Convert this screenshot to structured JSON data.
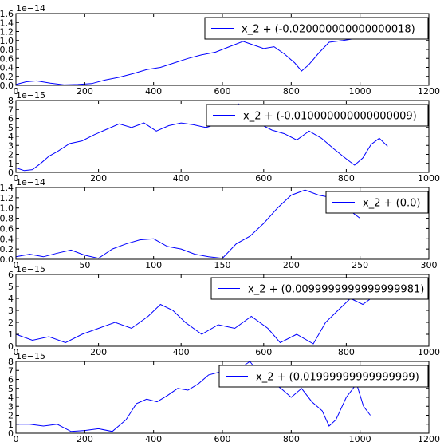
{
  "chart_data": [
    {
      "type": "line",
      "xlim": [
        0,
        1200
      ],
      "ylim": [
        0,
        1.6
      ],
      "y_offset": "1e−14",
      "x_ticks": [
        "0",
        "200",
        "400",
        "600",
        "800",
        "1000",
        "1200"
      ],
      "y_ticks": [
        "0.0",
        "0.2",
        "0.4",
        "0.6",
        "0.8",
        "1.0",
        "1.2",
        "1.4",
        "1.6"
      ],
      "legend": "x_2 + (-0.020000000000000018)",
      "legend_position": "upper-right",
      "series": [
        {
          "color": "#0000ff",
          "x": [
            0,
            30,
            60,
            100,
            140,
            180,
            220,
            260,
            300,
            340,
            380,
            420,
            460,
            500,
            540,
            580,
            620,
            660,
            690,
            720,
            750,
            780,
            810,
            830,
            850,
            880,
            910,
            950,
            1000,
            1060,
            1100
          ],
          "y": [
            0.02,
            0.08,
            0.1,
            0.05,
            0.01,
            0.02,
            0.04,
            0.12,
            0.18,
            0.26,
            0.35,
            0.4,
            0.5,
            0.6,
            0.68,
            0.74,
            0.86,
            0.98,
            0.9,
            0.82,
            0.86,
            0.7,
            0.5,
            0.32,
            0.45,
            0.72,
            0.96,
            1.0,
            1.06,
            1.1,
            1.16
          ]
        }
      ]
    },
    {
      "type": "line",
      "xlim": [
        0,
        1000
      ],
      "ylim": [
        0,
        8
      ],
      "y_offset": "1e−15",
      "x_ticks": [
        "0",
        "200",
        "400",
        "600",
        "800",
        "1000"
      ],
      "y_ticks": [
        "0",
        "1",
        "2",
        "3",
        "4",
        "5",
        "6",
        "7",
        "8"
      ],
      "legend": "x_2 + (-0.010000000000000009)",
      "legend_position": "upper-right",
      "series": [
        {
          "color": "#0000ff",
          "x": [
            0,
            20,
            40,
            60,
            80,
            100,
            130,
            160,
            190,
            220,
            250,
            280,
            310,
            340,
            370,
            400,
            430,
            460,
            490,
            520,
            540,
            560,
            590,
            620,
            650,
            680,
            710,
            740,
            770,
            800,
            820,
            840,
            860,
            880,
            900
          ],
          "y": [
            0.5,
            0.2,
            0.3,
            1.0,
            1.8,
            2.3,
            3.2,
            3.5,
            4.2,
            4.8,
            5.4,
            5.0,
            5.5,
            4.6,
            5.2,
            5.5,
            5.3,
            5.0,
            5.4,
            5.8,
            7.6,
            6.1,
            5.4,
            4.7,
            4.3,
            3.6,
            4.6,
            3.8,
            2.6,
            1.5,
            0.8,
            1.6,
            3.1,
            3.8,
            2.9
          ]
        }
      ]
    },
    {
      "type": "line",
      "xlim": [
        0,
        300
      ],
      "ylim": [
        0,
        1.4
      ],
      "y_offset": "1e−14",
      "x_ticks": [
        "0",
        "50",
        "100",
        "150",
        "200",
        "250",
        "300"
      ],
      "y_ticks": [
        "0.0",
        "0.2",
        "0.4",
        "0.6",
        "0.8",
        "1.0",
        "1.2",
        "1.4"
      ],
      "legend": "x_2 + (0.0)",
      "legend_position": "upper-right",
      "series": [
        {
          "color": "#0000ff",
          "x": [
            0,
            10,
            20,
            30,
            40,
            50,
            60,
            70,
            80,
            90,
            100,
            110,
            120,
            130,
            140,
            150,
            160,
            170,
            180,
            190,
            200,
            210,
            220,
            230,
            240,
            250
          ],
          "y": [
            0.05,
            0.1,
            0.05,
            0.12,
            0.18,
            0.08,
            0.02,
            0.2,
            0.3,
            0.38,
            0.4,
            0.25,
            0.2,
            0.1,
            0.05,
            0.02,
            0.3,
            0.45,
            0.7,
            1.0,
            1.25,
            1.35,
            1.25,
            1.2,
            1.0,
            0.8
          ]
        }
      ]
    },
    {
      "type": "line",
      "xlim": [
        0,
        1000
      ],
      "ylim": [
        0,
        6
      ],
      "y_offset": "1e−15",
      "x_ticks": [
        "0",
        "200",
        "400",
        "600",
        "800",
        "1000"
      ],
      "y_ticks": [
        "0",
        "1",
        "2",
        "3",
        "4",
        "5",
        "6"
      ],
      "legend": "x_2 + (0.0099999999999999981)",
      "legend_position": "upper-right",
      "series": [
        {
          "color": "#0000ff",
          "x": [
            0,
            40,
            80,
            120,
            160,
            200,
            240,
            280,
            320,
            350,
            380,
            410,
            450,
            490,
            530,
            570,
            610,
            640,
            680,
            720,
            750,
            780,
            810,
            840,
            860
          ],
          "y": [
            1.0,
            0.5,
            0.8,
            0.3,
            1.0,
            1.5,
            2.0,
            1.5,
            2.5,
            3.5,
            3.0,
            2.0,
            1.0,
            1.8,
            1.5,
            2.5,
            1.5,
            0.3,
            1.0,
            0.2,
            2.0,
            3.0,
            4.0,
            3.5,
            4.0
          ]
        }
      ]
    },
    {
      "type": "line",
      "xlim": [
        0,
        1200
      ],
      "ylim": [
        0,
        8
      ],
      "y_offset": "1e−15",
      "x_ticks": [
        "0",
        "200",
        "400",
        "600",
        "800",
        "1000",
        "1200"
      ],
      "y_ticks": [
        "0",
        "1",
        "2",
        "3",
        "4",
        "5",
        "6",
        "7",
        "8"
      ],
      "legend": "x_2 + (0.01999999999999999)",
      "legend_position": "upper-right",
      "series": [
        {
          "color": "#0000ff",
          "x": [
            0,
            40,
            80,
            120,
            160,
            200,
            240,
            280,
            320,
            350,
            380,
            410,
            440,
            470,
            500,
            530,
            560,
            590,
            620,
            650,
            680,
            710,
            740,
            770,
            800,
            830,
            860,
            890,
            910,
            930,
            960,
            990,
            1010,
            1030
          ],
          "y": [
            1.0,
            1.0,
            0.8,
            1.0,
            0.2,
            0.3,
            0.5,
            0.2,
            1.5,
            3.3,
            3.8,
            3.5,
            4.2,
            5.0,
            4.8,
            5.5,
            6.5,
            6.8,
            7.5,
            7.2,
            8.0,
            6.5,
            5.8,
            5.0,
            4.0,
            5.0,
            3.5,
            2.5,
            0.8,
            1.5,
            4.0,
            5.5,
            3.0,
            2.0
          ]
        }
      ]
    }
  ]
}
